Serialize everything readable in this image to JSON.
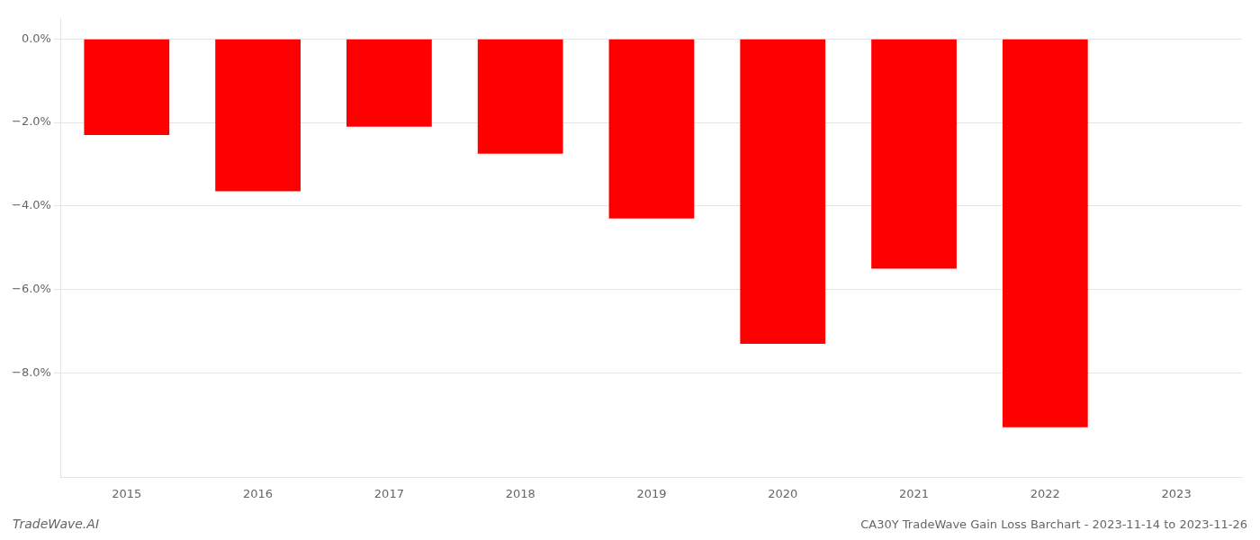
{
  "chart_data": {
    "type": "bar",
    "title": "CA30Y TradeWave Gain Loss Barchart - 2023-11-14 to 2023-11-26",
    "annotations": [
      "TradeWave.AI"
    ],
    "categories": [
      "2015",
      "2016",
      "2017",
      "2018",
      "2019",
      "2020",
      "2021",
      "2022",
      "2023"
    ],
    "values": [
      -2.3,
      -3.65,
      -2.1,
      -2.75,
      -4.3,
      -7.3,
      -5.5,
      -9.3,
      0.0
    ],
    "color": "#ff0000",
    "ylim": [
      -10.5,
      0.5
    ],
    "yticks": [
      {
        "value": 0.0,
        "label": "0.0%"
      },
      {
        "value": -2.0,
        "label": "−2.0%"
      },
      {
        "value": -4.0,
        "label": "−4.0%"
      },
      {
        "value": -6.0,
        "label": "−6.0%"
      },
      {
        "value": -8.0,
        "label": "−8.0%"
      }
    ],
    "grid": true
  }
}
